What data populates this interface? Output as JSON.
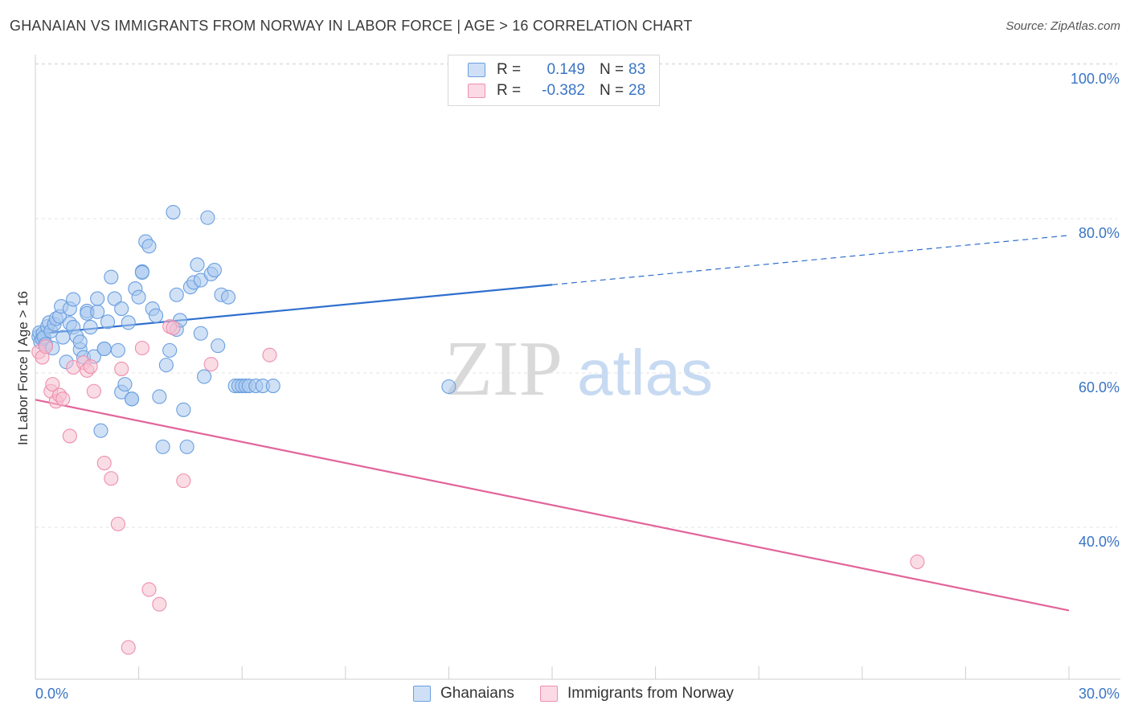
{
  "title": "GHANAIAN VS IMMIGRANTS FROM NORWAY IN LABOR FORCE | AGE > 16 CORRELATION CHART",
  "source": "Source: ZipAtlas.com",
  "watermark": {
    "zip": "ZIP",
    "atlas": "atlas"
  },
  "legend": {
    "rows": [
      {
        "r_label": "R =",
        "r_value": "0.149",
        "n_label": "N =",
        "n_value": "83",
        "color": "#a9c8ef"
      },
      {
        "r_label": "R =",
        "r_value": "-0.382",
        "n_label": "N =",
        "n_value": "28",
        "color": "#f6bfd0"
      }
    ]
  },
  "bottom_legend": [
    {
      "label": "Ghanaians",
      "color": "#a9c8ef"
    },
    {
      "label": "Immigrants from Norway",
      "color": "#f6bfd0"
    }
  ],
  "chart_data": {
    "type": "scatter",
    "title": "GHANAIAN VS IMMIGRANTS FROM NORWAY IN LABOR FORCE | AGE > 16 CORRELATION CHART",
    "ylabel": "In Labor Force | Age > 16",
    "xlabel": "",
    "xlim": [
      0,
      30
    ],
    "ylim": [
      20,
      103
    ],
    "x_tick_labels": [
      {
        "value": 0,
        "label": "0.0%"
      },
      {
        "value": 30,
        "label": "30.0%"
      }
    ],
    "y_tick_labels": [
      {
        "value": 100,
        "label": "100.0%"
      },
      {
        "value": 80,
        "label": "80.0%"
      },
      {
        "value": 60,
        "label": "60.0%"
      },
      {
        "value": 40,
        "label": "40.0%"
      }
    ],
    "grid": true,
    "series": [
      {
        "name": "Ghanaians",
        "color": "#6a9fe0",
        "fill": "#a9c8ef",
        "trend_color": "#2f6fce",
        "trend": {
          "x0": 0,
          "y0": 66.8,
          "x1": 15,
          "y1": 73.2,
          "x_dash_end": 30,
          "y_dash_end": 79.6
        },
        "x": [
          0.1,
          0.12,
          0.15,
          0.2,
          0.22,
          0.25,
          0.3,
          0.35,
          0.4,
          0.45,
          0.5,
          0.55,
          0.6,
          0.7,
          0.75,
          0.8,
          0.9,
          1.0,
          1.0,
          1.1,
          1.1,
          1.2,
          1.3,
          1.3,
          1.4,
          1.5,
          1.5,
          1.6,
          1.7,
          1.8,
          1.8,
          1.9,
          2.0,
          2.0,
          2.1,
          2.2,
          2.3,
          2.4,
          2.5,
          2.5,
          2.6,
          2.7,
          2.8,
          2.8,
          2.9,
          3.0,
          3.1,
          3.1,
          3.2,
          3.3,
          3.4,
          3.5,
          3.6,
          3.7,
          3.8,
          3.9,
          4.0,
          4.1,
          4.1,
          4.2,
          4.3,
          4.4,
          4.5,
          4.6,
          4.7,
          4.8,
          4.8,
          4.9,
          5.0,
          5.1,
          5.2,
          5.3,
          5.4,
          5.6,
          5.8,
          5.9,
          6.0,
          6.1,
          6.2,
          6.4,
          6.6,
          6.9,
          12.0
        ],
        "y": [
          66.5,
          67,
          65.8,
          66.2,
          66.9,
          66.4,
          65.5,
          67.8,
          68.3,
          67.2,
          65,
          68.1,
          68.8,
          69.1,
          70.4,
          66.4,
          63.2,
          70.1,
          68.2,
          67.7,
          71.3,
          66.5,
          64.8,
          65.8,
          63.8,
          69.8,
          69.5,
          67.7,
          63.9,
          69.7,
          71.4,
          54.3,
          64.9,
          64.9,
          68.4,
          74.2,
          71.4,
          64.7,
          70.1,
          59.3,
          60.3,
          68.3,
          58.4,
          58.4,
          72.7,
          71.6,
          74.9,
          74.8,
          78.8,
          78.2,
          70.1,
          69.2,
          58.7,
          52.2,
          62.8,
          64.7,
          82.6,
          67.4,
          71.9,
          68.6,
          57.0,
          52.2,
          72.9,
          73.5,
          75.8,
          66.9,
          73.8,
          61.3,
          81.9,
          74.6,
          75.1,
          65.3,
          71.9,
          71.6,
          60.1,
          60.1,
          60.1,
          60.1,
          60.1,
          60.1,
          60.1,
          60.1,
          60.0
        ]
      },
      {
        "name": "Immigrants from Norway",
        "color": "#ee8fae",
        "fill": "#f6bfd0",
        "trend_color": "#e2649a",
        "trend": {
          "x0": 0,
          "y0": 58.3,
          "x1": 30,
          "y1": 31.0
        },
        "x": [
          0.1,
          0.2,
          0.3,
          0.45,
          0.5,
          0.6,
          0.7,
          0.8,
          1.0,
          1.1,
          1.4,
          1.5,
          1.6,
          1.7,
          2.0,
          2.2,
          2.4,
          2.5,
          2.7,
          3.1,
          3.3,
          3.6,
          3.9,
          4.0,
          4.3,
          5.1,
          6.8,
          25.6
        ],
        "y": [
          64.5,
          63.8,
          65.2,
          59.4,
          60.3,
          58.1,
          58.9,
          58.4,
          53.6,
          62.5,
          63.1,
          62.1,
          62.6,
          59.4,
          50.1,
          48.1,
          42.2,
          62.3,
          26.2,
          65.0,
          33.7,
          31.8,
          67.8,
          67.6,
          47.8,
          62.9,
          64.1,
          37.3
        ]
      }
    ]
  }
}
